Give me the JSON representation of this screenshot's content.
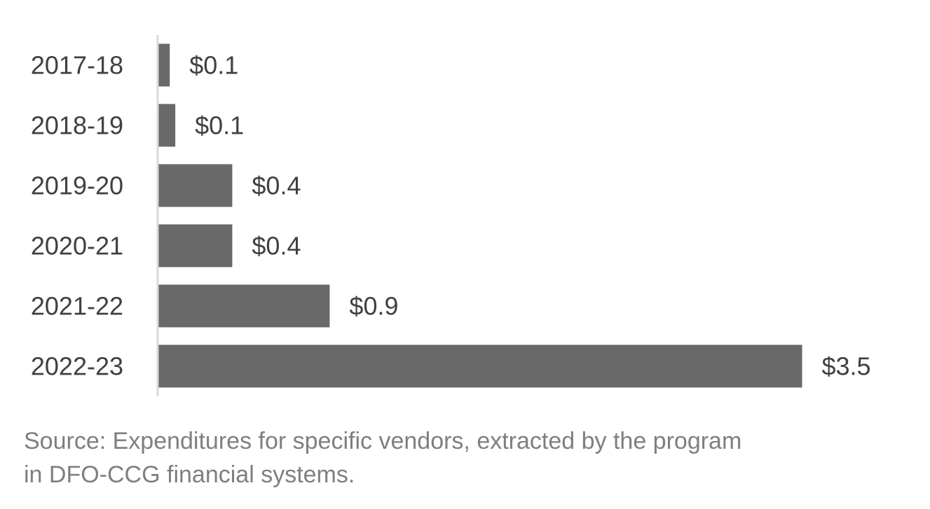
{
  "chart_data": {
    "type": "bar",
    "orientation": "horizontal",
    "categories": [
      "2017-18",
      "2018-19",
      "2019-20",
      "2020-21",
      "2021-22",
      "2022-23"
    ],
    "values": [
      0.06,
      0.09,
      0.4,
      0.4,
      0.93,
      3.5
    ],
    "data_labels": [
      "$0.1",
      "$0.1",
      "$0.4",
      "$0.4",
      "$0.9",
      "$3.5"
    ],
    "title": "",
    "xlabel": "",
    "ylabel": "",
    "xlim": [
      0,
      3.5
    ],
    "grid": false,
    "legend": "none",
    "bar_color": "#696969",
    "axis_color": "#d9d9d9"
  },
  "source_note": {
    "line1": "Source: Expenditures for specific vendors, extracted by the program",
    "line2": "in DFO-CCG financial systems."
  }
}
